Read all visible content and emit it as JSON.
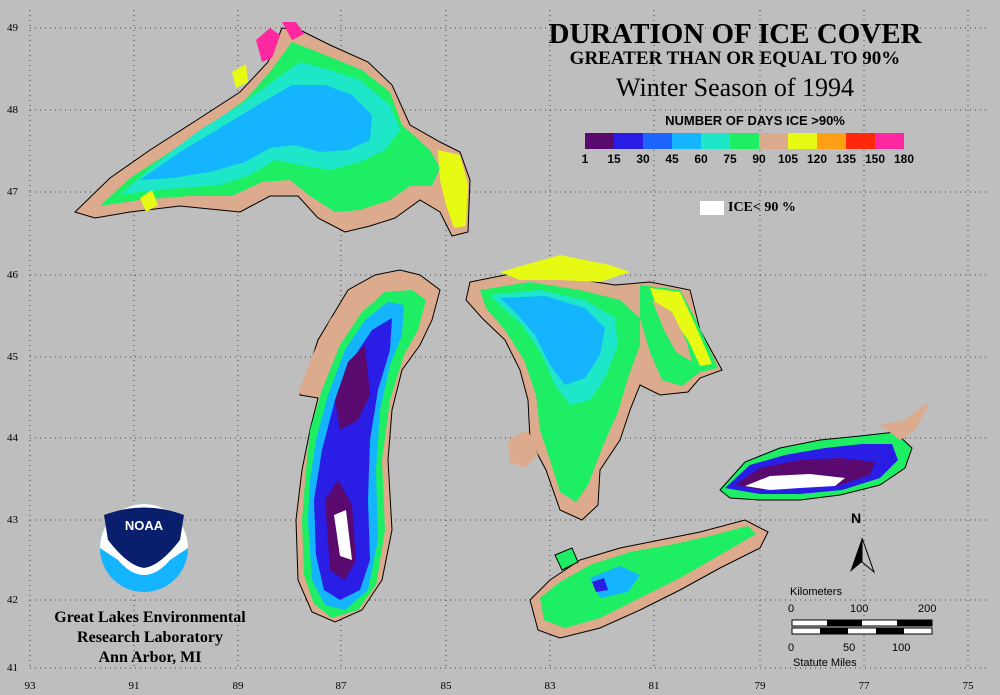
{
  "title": {
    "line1": "DURATION OF ICE COVER",
    "line2": "GREATER THAN OR EQUAL TO 90%",
    "line3": "Winter Season of 1994"
  },
  "legend": {
    "title": "NUMBER OF DAYS ICE >90%",
    "colors": [
      "#5a0a6e",
      "#2a1ee6",
      "#1e64ff",
      "#14b4ff",
      "#1ee6c8",
      "#1eee64",
      "#dcaa8c",
      "#e6fa14",
      "#ffa014",
      "#ff280a",
      "#ff28a0"
    ],
    "ticks": [
      "1",
      "15",
      "30",
      "45",
      "60",
      "75",
      "90",
      "105",
      "120",
      "135",
      "150",
      "180"
    ],
    "ice_label": "ICE< 90 %"
  },
  "axes": {
    "latitudes": [
      "49",
      "48",
      "47",
      "46",
      "45",
      "44",
      "43",
      "42",
      "41"
    ],
    "longitudes": [
      "93",
      "91",
      "89",
      "87",
      "85",
      "83",
      "81",
      "79",
      "77",
      "75"
    ]
  },
  "organization": {
    "logo_text": "NOAA",
    "line1": "Great Lakes Environmental",
    "line2": "Research Laboratory",
    "line3": "Ann Arbor, MI"
  },
  "scale": {
    "km_label": "Kilometers",
    "km_ticks": [
      "0",
      "100",
      "200"
    ],
    "mi_ticks": [
      "0",
      "50",
      "100"
    ],
    "mi_label": "Statute Miles"
  },
  "north_label": "N",
  "colors": {
    "background": "#bebebe",
    "land_outline": "#000000",
    "ice_under_90": "#ffffff"
  }
}
